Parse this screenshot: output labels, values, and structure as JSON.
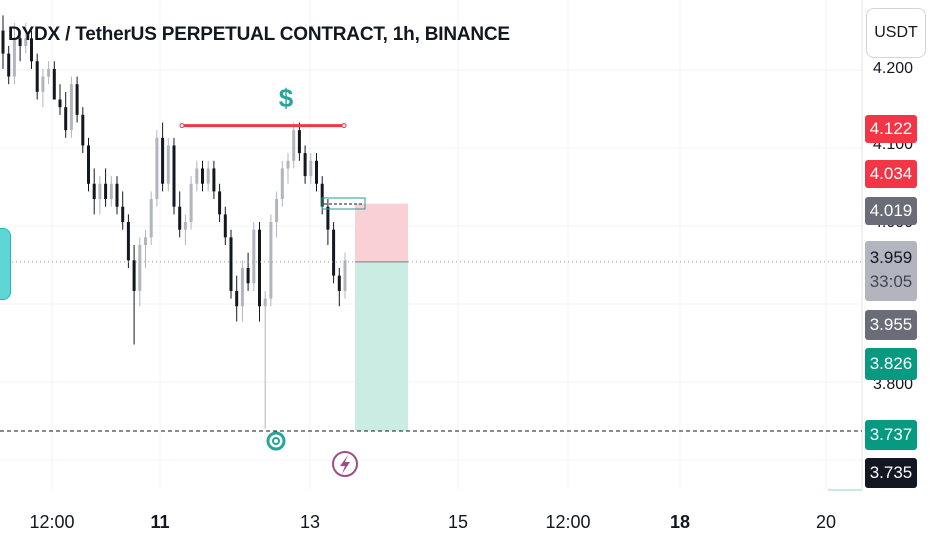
{
  "header": {
    "title": "DYDX / TetherUS PERPETUAL CONTRACT, 1h, BINANCE"
  },
  "currency_button": {
    "label": "USDT"
  },
  "price_tags": [
    {
      "id": "red1",
      "label": "4.122",
      "color": "#f23645",
      "text_color": "#ffffff"
    },
    {
      "id": "red2",
      "label": "4.034",
      "color": "#f23645",
      "text_color": "#ffffff"
    },
    {
      "id": "gray1",
      "label": "4.019",
      "color": "#6a6d78",
      "text_color": "#ffffff"
    },
    {
      "id": "last",
      "label": "3.959",
      "countdown": "33:05",
      "color": "#b2b5be",
      "text_color": "#131722"
    },
    {
      "id": "gray2",
      "label": "3.955",
      "color": "#6a6d78",
      "text_color": "#ffffff"
    },
    {
      "id": "green1",
      "label": "3.826",
      "color": "#089981",
      "text_color": "#ffffff"
    },
    {
      "id": "green2",
      "label": "3.737",
      "color": "#089981",
      "text_color": "#ffffff"
    },
    {
      "id": "dark",
      "label": "3.735",
      "color": "#131722",
      "text_color": "#ffffff"
    }
  ],
  "chart_data": {
    "type": "candlestick",
    "title": "DYDX / TetherUS PERPETUAL CONTRACT, 1h, BINANCE",
    "y_ticks": [
      "4.200",
      "4.100",
      "4.000",
      "3.800"
    ],
    "x_ticks": [
      {
        "label": "12:00",
        "bold": false
      },
      {
        "label": "11",
        "bold": true
      },
      {
        "label": "13",
        "bold": false
      },
      {
        "label": "15",
        "bold": false
      },
      {
        "label": "12:00",
        "bold": false
      },
      {
        "label": "18",
        "bold": true
      },
      {
        "label": "20",
        "bold": false
      }
    ],
    "ylim": [
      3.66,
      4.3
    ],
    "colors": {
      "up": "#b2b5be",
      "down": "#131722",
      "stop_zone": "#f9d1d4",
      "target_zone": "#cbece3",
      "resistance": "#f23645",
      "marker": "#26a69a",
      "lightning": "#9c4f82"
    },
    "candles": [
      [
        4.26,
        4.28,
        4.21,
        4.23
      ],
      [
        4.23,
        4.24,
        4.19,
        4.2
      ],
      [
        4.2,
        4.27,
        4.19,
        4.25
      ],
      [
        4.25,
        4.26,
        4.22,
        4.24
      ],
      [
        4.24,
        4.27,
        4.23,
        4.25
      ],
      [
        4.25,
        4.26,
        4.21,
        4.22
      ],
      [
        4.22,
        4.23,
        4.17,
        4.18
      ],
      [
        4.18,
        4.21,
        4.16,
        4.2
      ],
      [
        4.2,
        4.22,
        4.19,
        4.21
      ],
      [
        4.21,
        4.22,
        4.17,
        4.17
      ],
      [
        4.17,
        4.19,
        4.15,
        4.16
      ],
      [
        4.16,
        4.18,
        4.12,
        4.13
      ],
      [
        4.13,
        4.2,
        4.12,
        4.19
      ],
      [
        4.19,
        4.2,
        4.14,
        4.15
      ],
      [
        4.15,
        4.16,
        4.1,
        4.11
      ],
      [
        4.11,
        4.12,
        4.05,
        4.06
      ],
      [
        4.06,
        4.08,
        4.02,
        4.04
      ],
      [
        4.04,
        4.07,
        4.02,
        4.06
      ],
      [
        4.06,
        4.08,
        4.03,
        4.04
      ],
      [
        4.04,
        4.07,
        4.03,
        4.06
      ],
      [
        4.06,
        4.07,
        4.02,
        4.03
      ],
      [
        4.03,
        4.05,
        4.0,
        4.01
      ],
      [
        4.01,
        4.02,
        3.95,
        3.96
      ],
      [
        3.96,
        3.98,
        3.85,
        3.92
      ],
      [
        3.92,
        3.99,
        3.9,
        3.98
      ],
      [
        3.98,
        4.0,
        3.95,
        3.99
      ],
      [
        3.99,
        4.05,
        3.98,
        4.04
      ],
      [
        4.04,
        4.13,
        4.03,
        4.12
      ],
      [
        4.12,
        4.14,
        4.05,
        4.06
      ],
      [
        4.06,
        4.12,
        4.05,
        4.11
      ],
      [
        4.11,
        4.12,
        4.02,
        4.03
      ],
      [
        4.03,
        4.05,
        3.99,
        4.0
      ],
      [
        4.0,
        4.02,
        3.98,
        4.01
      ],
      [
        4.01,
        4.07,
        4.0,
        4.06
      ],
      [
        4.06,
        4.09,
        4.05,
        4.08
      ],
      [
        4.08,
        4.09,
        4.05,
        4.06
      ],
      [
        4.06,
        4.09,
        4.05,
        4.08
      ],
      [
        4.08,
        4.09,
        4.04,
        4.05
      ],
      [
        4.05,
        4.06,
        4.01,
        4.02
      ],
      [
        4.02,
        4.03,
        3.98,
        3.99
      ],
      [
        3.99,
        4.0,
        3.91,
        3.92
      ],
      [
        3.92,
        3.94,
        3.88,
        3.9
      ],
      [
        3.9,
        3.96,
        3.88,
        3.95
      ],
      [
        3.95,
        3.97,
        3.92,
        3.93
      ],
      [
        3.93,
        4.01,
        3.92,
        4.0
      ],
      [
        4.0,
        4.01,
        3.88,
        3.9
      ],
      [
        3.9,
        3.92,
        3.74,
        3.91
      ],
      [
        3.91,
        4.02,
        3.9,
        4.01
      ],
      [
        4.01,
        4.05,
        3.99,
        4.04
      ],
      [
        4.04,
        4.09,
        4.03,
        4.08
      ],
      [
        4.08,
        4.1,
        4.06,
        4.09
      ],
      [
        4.09,
        4.14,
        4.08,
        4.13
      ],
      [
        4.13,
        4.14,
        4.09,
        4.1
      ],
      [
        4.1,
        4.11,
        4.06,
        4.07
      ],
      [
        4.07,
        4.1,
        4.06,
        4.09
      ],
      [
        4.09,
        4.1,
        4.05,
        4.06
      ],
      [
        4.06,
        4.07,
        4.02,
        4.03
      ],
      [
        4.03,
        4.04,
        3.98,
        4.0
      ],
      [
        4.0,
        4.01,
        3.93,
        3.94
      ],
      [
        3.94,
        3.95,
        3.9,
        3.92
      ],
      [
        3.92,
        3.97,
        3.91,
        3.96
      ]
    ],
    "resistance_level": 4.136,
    "position": {
      "entry": 3.958,
      "stop": 4.034,
      "target": 3.737
    },
    "support_dashed": 3.737
  }
}
